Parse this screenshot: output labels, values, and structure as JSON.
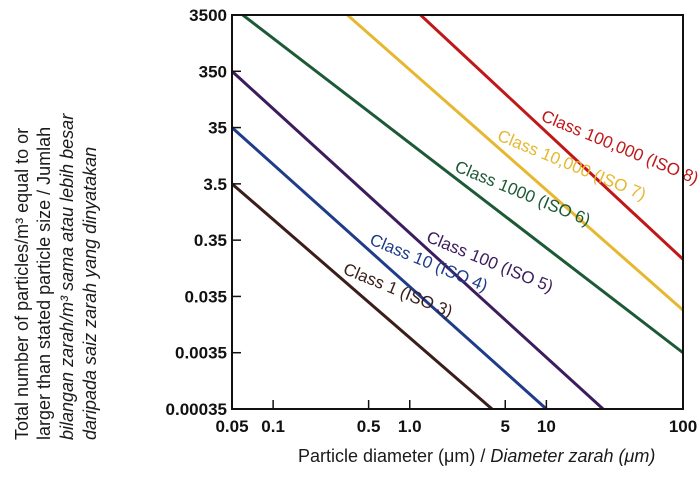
{
  "chart_data": {
    "type": "line",
    "xscale": "log",
    "yscale": "log",
    "xlim": [
      0.05,
      100
    ],
    "ylim": [
      0.00035,
      3500
    ],
    "xticks": [
      {
        "v": 0.05,
        "label": "0.05"
      },
      {
        "v": 0.1,
        "label": "0.1"
      },
      {
        "v": 0.5,
        "label": "0.5"
      },
      {
        "v": 1.0,
        "label": "1.0"
      },
      {
        "v": 5,
        "label": "5"
      },
      {
        "v": 10,
        "label": "10"
      },
      {
        "v": 100,
        "label": "100"
      }
    ],
    "yticks": [
      {
        "v": 3500,
        "label": "3500"
      },
      {
        "v": 350,
        "label": "350"
      },
      {
        "v": 35,
        "label": "35"
      },
      {
        "v": 3.5,
        "label": "3.5"
      },
      {
        "v": 0.35,
        "label": "0.35"
      },
      {
        "v": 0.035,
        "label": "0.035"
      },
      {
        "v": 0.0035,
        "label": "0.0035"
      },
      {
        "v": 0.00035,
        "label": "0.00035"
      }
    ],
    "ylabel_lines": [
      {
        "text": "Total number of particles/m³ equal to or",
        "italic": false
      },
      {
        "text": "larger than stated particle size / Jumlah",
        "italic": false
      },
      {
        "text": "bilangan zarah/m³ sama atau lebih besar",
        "italic": true
      },
      {
        "text": "daripada saiz zarah yang dinyatakan",
        "italic": true
      }
    ],
    "xlabel_en": "Particle diameter (μm) / ",
    "xlabel_ms": "Diameter zarah (μm)",
    "grid": false,
    "series": [
      {
        "name": "Class 1 (ISO 3)",
        "color": "#3b1d1a",
        "x": [
          0.05,
          4.0
        ],
        "y": [
          3.5,
          0.00035
        ]
      },
      {
        "name": "Class 10 (ISO 4)",
        "color": "#1f3c8a",
        "x": [
          0.05,
          10
        ],
        "y": [
          35,
          0.00035
        ]
      },
      {
        "name": "Class 100 (ISO 5)",
        "color": "#3d1c5e",
        "x": [
          0.05,
          26
        ],
        "y": [
          350,
          0.00035
        ]
      },
      {
        "name": "Class 1000 (ISO 6)",
        "color": "#1c5a35",
        "x": [
          0.06,
          100
        ],
        "y": [
          3500,
          0.0035
        ]
      },
      {
        "name": "Class 10,000 (ISO 7)",
        "color": "#e6b830",
        "x": [
          0.35,
          100
        ],
        "y": [
          3500,
          0.02
        ]
      },
      {
        "name": "Class 100,000 (ISO 8)",
        "color": "#c01818",
        "x": [
          1.2,
          100
        ],
        "y": [
          3500,
          0.16
        ]
      }
    ]
  }
}
